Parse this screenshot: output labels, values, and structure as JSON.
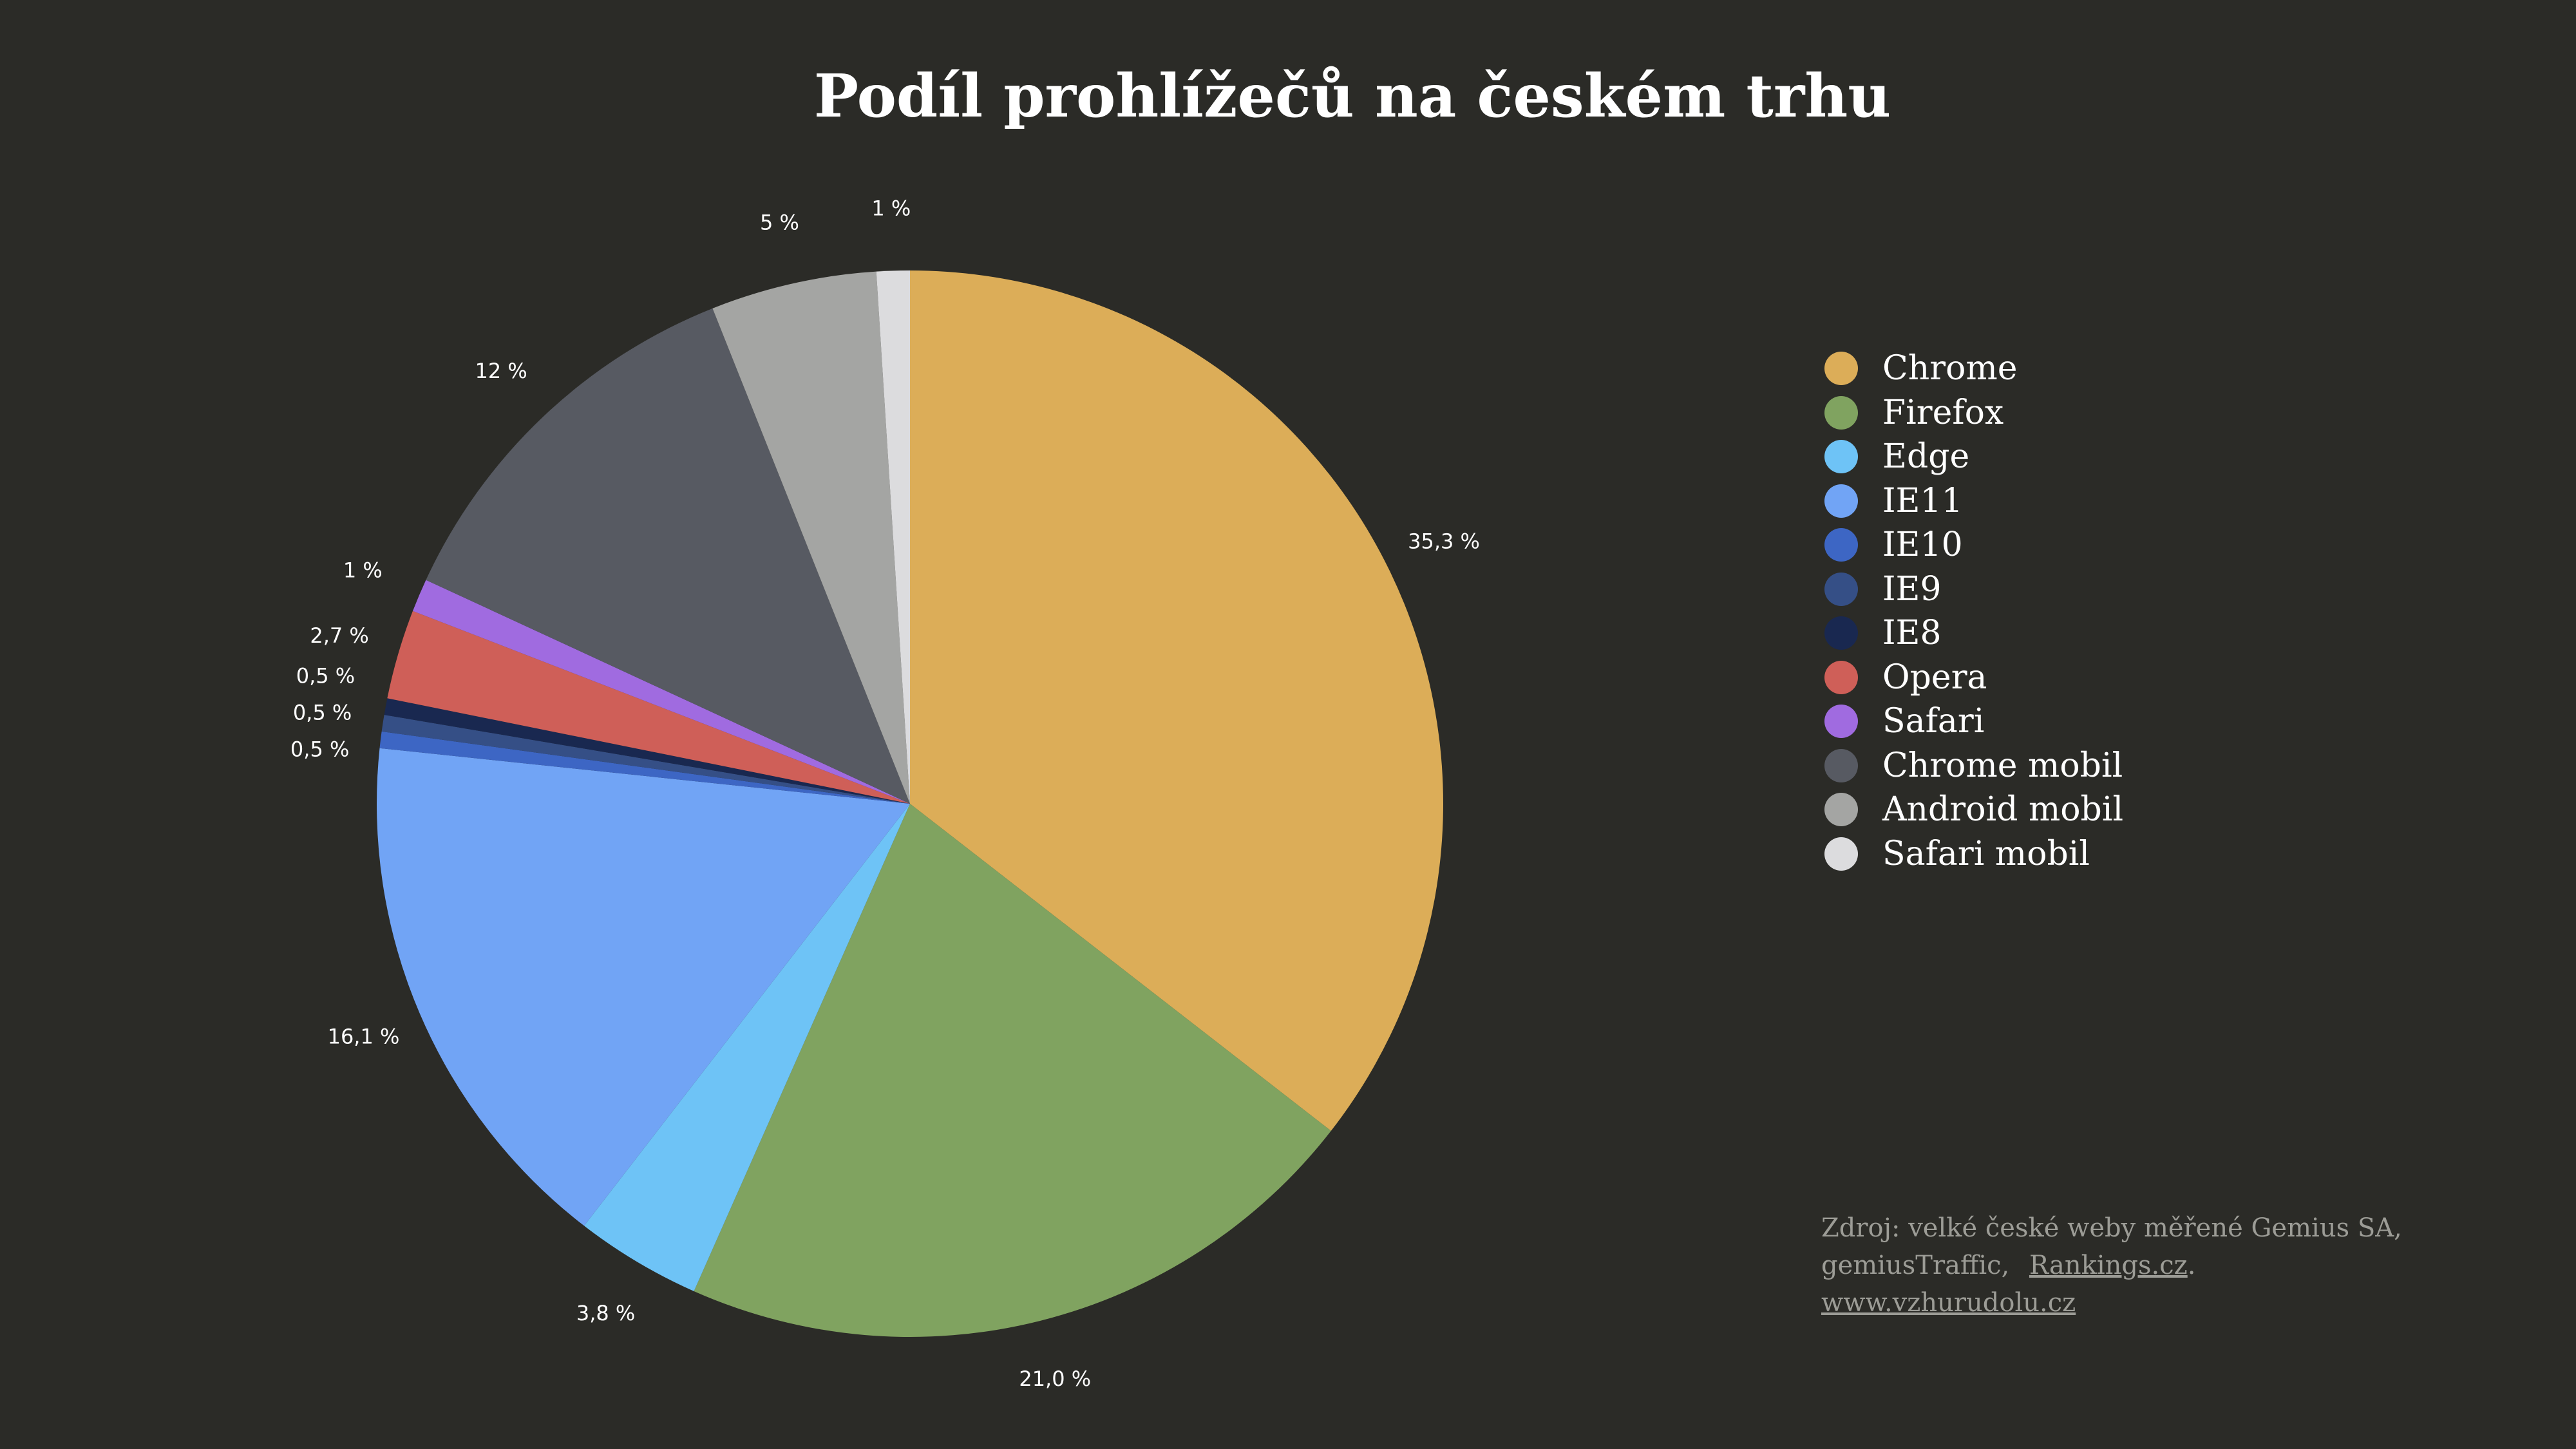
{
  "chart_data": {
    "type": "pie",
    "title": "Podíl prohlížečů na českém trhu",
    "slices": [
      {
        "name": "Chrome",
        "value": 35.3,
        "label": "35,3 %",
        "color": "#dcad58"
      },
      {
        "name": "Firefox",
        "value": 21.0,
        "label": "21,0 %",
        "color": "#80a360"
      },
      {
        "name": "Edge",
        "value": 3.8,
        "label": "3,8 %",
        "color": "#6ec3f6"
      },
      {
        "name": "IE11",
        "value": 16.1,
        "label": "16,1 %",
        "color": "#71a4f5"
      },
      {
        "name": "IE10",
        "value": 0.5,
        "label": "0,5 %",
        "color": "#3d66c4"
      },
      {
        "name": "IE9",
        "value": 0.5,
        "label": "0,5 %",
        "color": "#354f86"
      },
      {
        "name": "IE8",
        "value": 0.5,
        "label": "0,5 %",
        "color": "#192850"
      },
      {
        "name": "Opera",
        "value": 2.7,
        "label": "2,7 %",
        "color": "#cf5f58"
      },
      {
        "name": "Safari",
        "value": 1,
        "label": "1 %",
        "color": "#a06be0"
      },
      {
        "name": "Chrome mobil",
        "value": 12,
        "label": "12 %",
        "color": "#575a62"
      },
      {
        "name": "Android mobil",
        "value": 5,
        "label": "5 %",
        "color": "#a4a5a3"
      },
      {
        "name": "Safari mobil",
        "value": 1,
        "label": "1 %",
        "color": "#dcdcde"
      }
    ],
    "legend_position": "right"
  },
  "source": {
    "line1": "Zdroj: velké české weby měřené Gemius SA,",
    "line2_prefix": "gemiusTraffic,",
    "link_rankings": "Rankings.cz",
    "line2_suffix": ".",
    "link_site": "www.vzhurudolu.cz"
  }
}
